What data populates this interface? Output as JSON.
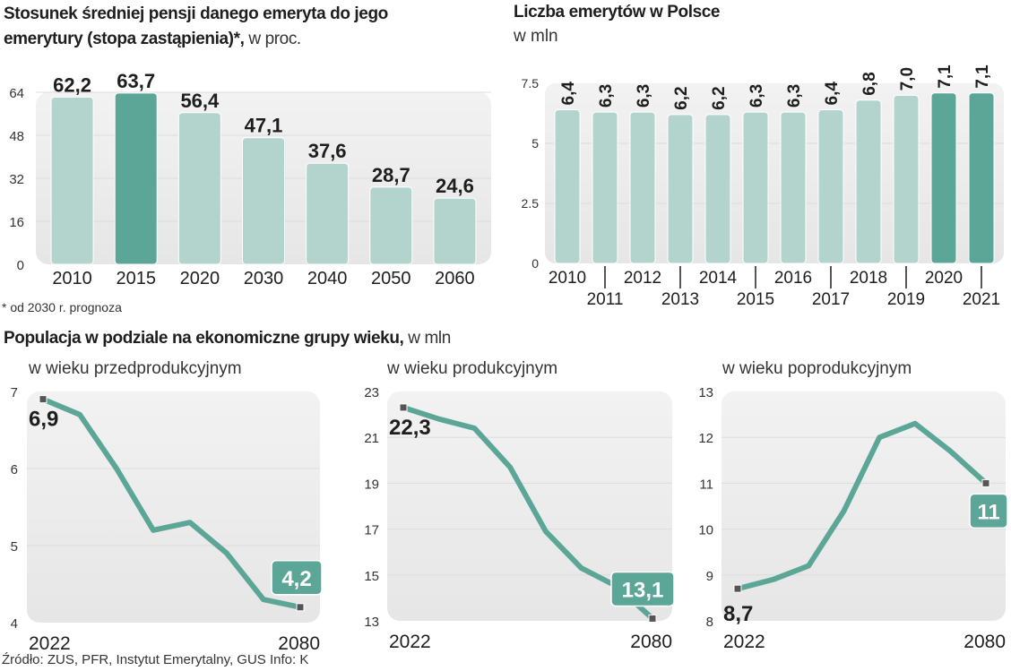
{
  "colors": {
    "accent": "#5ba696",
    "bar_light": "#b2d4cc",
    "panel_top": "#f2f2f2",
    "panel_bottom": "#e6e6e6",
    "grid": "#dcdcdc",
    "text": "#1e1e1e",
    "marker": "#555555"
  },
  "replacement_rate": {
    "title_bold_line1": "Stosunek średniej pensji danego emeryta do jego",
    "title_bold_line2": "emerytury (stopa zastąpienia)*,",
    "title_unit": " w proc.",
    "footnote": "* od 2030 r. prognoza"
  },
  "retirees": {
    "title": "Liczba emerytów w Polsce",
    "unit": "w mln"
  },
  "population": {
    "title_bold": "Populacja w podziale na ekonomiczne grupy wieku,",
    "title_unit": " w mln"
  },
  "source": "Źródło: ZUS, PFR, Instytut Emerytalny, GUS Info: K",
  "chart_data": [
    {
      "id": "replacement_rate",
      "type": "bar",
      "title": "Stosunek średniej pensji danego emeryta do jego emerytury (stopa zastąpienia)*, w proc.",
      "categories": [
        "2010",
        "2015",
        "2020",
        "2030",
        "2040",
        "2050",
        "2060"
      ],
      "values": [
        62.2,
        63.7,
        56.4,
        47.1,
        37.6,
        28.7,
        24.6
      ],
      "value_labels": [
        "62,2",
        "63,7",
        "56,4",
        "47,1",
        "37,6",
        "28,7",
        "24,6"
      ],
      "highlight": [
        "2015"
      ],
      "ylim": [
        0,
        64
      ],
      "yticks": [
        0,
        16,
        32,
        48,
        64
      ],
      "ytick_labels": [
        "0",
        "16",
        "32",
        "48",
        "64"
      ],
      "xlabel": "",
      "ylabel": "",
      "grid": true
    },
    {
      "id": "retirees",
      "type": "bar",
      "title": "Liczba emerytów w Polsce",
      "subtitle": "w mln",
      "categories": [
        "2010",
        "2011",
        "2012",
        "2013",
        "2014",
        "2015",
        "2016",
        "2017",
        "2018",
        "2019",
        "2020",
        "2021"
      ],
      "values": [
        6.4,
        6.3,
        6.3,
        6.2,
        6.2,
        6.3,
        6.3,
        6.4,
        6.8,
        7.0,
        7.1,
        7.1
      ],
      "value_labels": [
        "6,4",
        "6,3",
        "6,3",
        "6,2",
        "6,2",
        "6,3",
        "6,3",
        "6,4",
        "6,8",
        "7,0",
        "7,1",
        "7,1"
      ],
      "highlight": [
        "2020",
        "2021"
      ],
      "ylim": [
        0,
        7.5
      ],
      "yticks": [
        0,
        2.5,
        5,
        7.5
      ],
      "ytick_labels": [
        "0",
        "2.5",
        "5",
        "7.5"
      ],
      "xlabel": "",
      "ylabel": "",
      "grid": true
    },
    {
      "id": "pre_working_age",
      "type": "line",
      "title": "w wieku przedprodukcyjnym",
      "x_start_label": "2022",
      "x_end_label": "2080",
      "values": [
        6.9,
        6.7,
        6.0,
        5.2,
        5.3,
        4.9,
        4.3,
        4.2
      ],
      "start_label": "6,9",
      "end_label": "4,2",
      "ylim": [
        4,
        7
      ],
      "yticks": [
        4,
        5,
        6,
        7
      ],
      "ytick_labels": [
        "4",
        "5",
        "6",
        "7"
      ],
      "grid": true
    },
    {
      "id": "working_age",
      "type": "line",
      "title": "w wieku produkcyjnym",
      "x_start_label": "2022",
      "x_end_label": "2080",
      "values": [
        22.3,
        21.8,
        21.4,
        19.7,
        16.9,
        15.3,
        14.5,
        13.1
      ],
      "start_label": "22,3",
      "end_label": "13,1",
      "ylim": [
        13,
        23
      ],
      "yticks": [
        13,
        15,
        17,
        19,
        21,
        23
      ],
      "ytick_labels": [
        "13",
        "15",
        "17",
        "19",
        "21",
        "23"
      ],
      "grid": true
    },
    {
      "id": "post_working_age",
      "type": "line",
      "title": "w wieku poprodukcyjnym",
      "x_start_label": "2022",
      "x_end_label": "2080",
      "values": [
        8.7,
        8.9,
        9.2,
        10.4,
        12.0,
        12.3,
        11.7,
        11.0
      ],
      "start_label": "8,7",
      "end_label": "11",
      "ylim": [
        8,
        13
      ],
      "yticks": [
        8,
        9,
        10,
        11,
        12,
        13
      ],
      "ytick_labels": [
        "8",
        "9",
        "10",
        "11",
        "12",
        "13"
      ],
      "grid": true
    }
  ]
}
